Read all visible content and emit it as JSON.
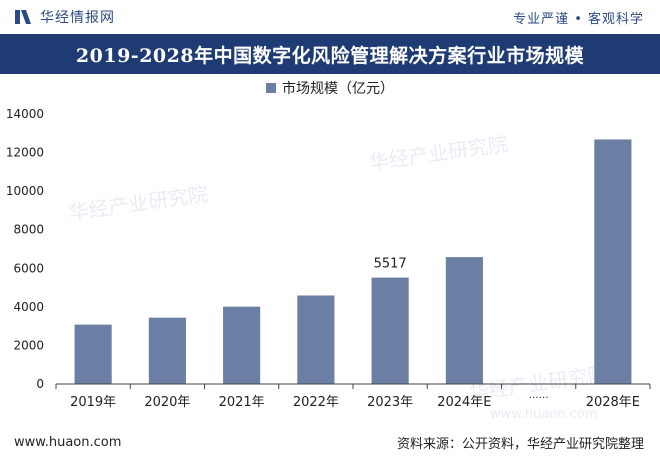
{
  "header": {
    "brand_name": "华经情报网",
    "slogan": "专业严谨 • 客观科学"
  },
  "title": "2019-2028年中国数字化风险管理解决方案行业市场规模",
  "legend": {
    "series_label": "市场规模（亿元）"
  },
  "colors": {
    "bar": "#6a7fa3",
    "title_bg": "#1f3b73",
    "brand": "#2a4a86"
  },
  "chart_data": {
    "type": "bar",
    "title": "2019-2028年中国数字化风险管理解决方案行业市场规模",
    "categories": [
      "2019年",
      "2020年",
      "2021年",
      "2022年",
      "2023年",
      "2024年E",
      "……",
      "2028年E"
    ],
    "series": [
      {
        "name": "市场规模（亿元）",
        "values": [
          3080,
          3440,
          4010,
          4590,
          5517,
          6580,
          null,
          12680
        ]
      }
    ],
    "data_labels": [
      {
        "category": "2023年",
        "text": "5517"
      }
    ],
    "y_ticks": [
      "0",
      "2000",
      "4000",
      "6000",
      "8000",
      "10000",
      "12000",
      "14000"
    ],
    "ylim": [
      0,
      14000
    ],
    "grid": false,
    "legend_position": "top-center"
  },
  "watermark": {
    "cn": "华经产业研究院",
    "url": "www.huaon.com"
  },
  "footer": {
    "website": "www.huaon.com",
    "source": "资料来源：公开资料，华经产业研究院整理"
  }
}
